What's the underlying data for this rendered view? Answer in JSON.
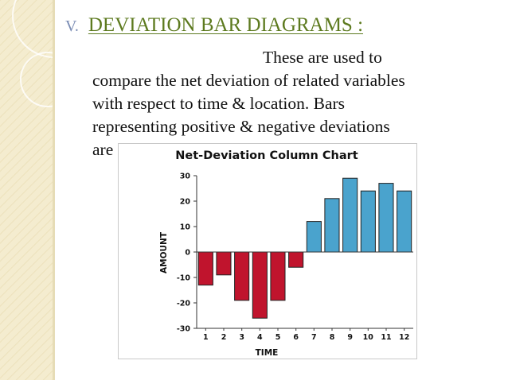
{
  "slide": {
    "number": "V.",
    "heading": "DEVIATION BAR DIAGRAMS :",
    "body_lines": [
      "These are used to",
      "compare the net deviation of related variables",
      "with respect to time & location. Bars",
      "representing positive & negative deviations",
      "are"
    ]
  },
  "colors": {
    "positive": "#4aa3cd",
    "negative": "#c0142d",
    "heading": "#5d7a1f",
    "sidebar": "#f4eccf"
  },
  "chart_data": {
    "type": "bar",
    "title": "Net-Deviation Column Chart",
    "xlabel": "TIME",
    "ylabel": "AMOUNT",
    "categories": [
      "1",
      "2",
      "3",
      "4",
      "5",
      "6",
      "7",
      "8",
      "9",
      "10",
      "11",
      "12"
    ],
    "values": [
      -13,
      -9,
      -19,
      -26,
      -19,
      -6,
      12,
      21,
      29,
      24,
      27,
      24
    ],
    "ylim": [
      -30,
      30
    ],
    "yticks": [
      30,
      20,
      10,
      0,
      -10,
      -20,
      -30
    ],
    "grid": false,
    "legend": "none"
  }
}
